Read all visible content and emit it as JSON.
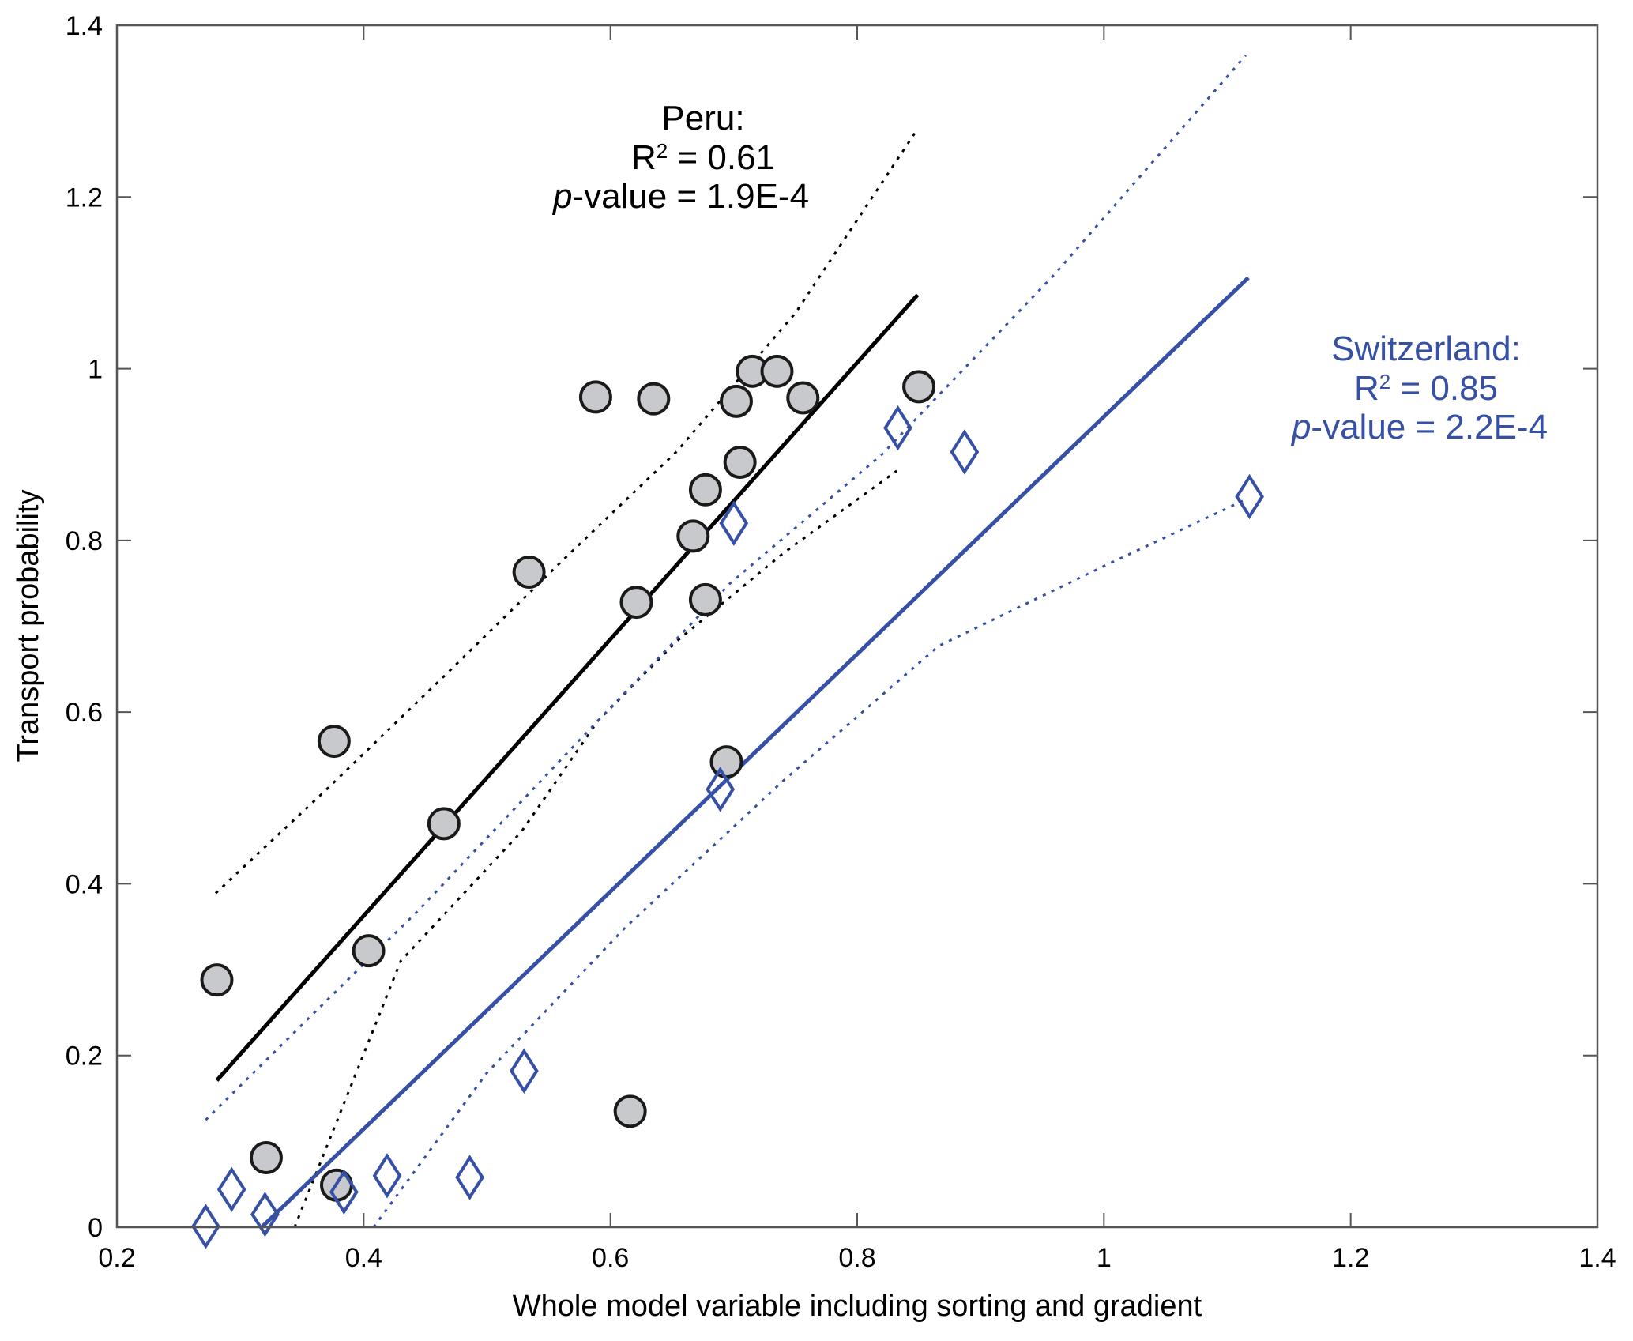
{
  "chart_data": {
    "type": "scatter",
    "title": "",
    "xlabel": "Whole model variable including sorting and gradient",
    "ylabel": "Transport probability",
    "xlim": [
      0.2,
      1.4
    ],
    "ylim": [
      0,
      1.4
    ],
    "xticks": [
      0.2,
      0.4,
      0.6,
      0.8,
      1,
      1.2,
      1.4
    ],
    "xtick_labels": [
      "0.2",
      "0.4",
      "0.6",
      "0.8",
      "1",
      "1.2",
      "1.4"
    ],
    "yticks": [
      0,
      0.2,
      0.4,
      0.6,
      0.8,
      1,
      1.2,
      1.4
    ],
    "ytick_labels": [
      "0",
      "0.2",
      "0.4",
      "0.6",
      "0.8",
      "1",
      "1.2",
      "1.4"
    ],
    "grid": false,
    "series": [
      {
        "name": "Peru",
        "marker": "circle",
        "color": "#000000",
        "fill": "#c8c9cc",
        "points": [
          [
            0.281,
            0.288
          ],
          [
            0.376,
            0.566
          ],
          [
            0.321,
            0.081
          ],
          [
            0.378,
            0.049
          ],
          [
            0.404,
            0.322
          ],
          [
            0.465,
            0.47
          ],
          [
            0.534,
            0.763
          ],
          [
            0.588,
            0.967
          ],
          [
            0.635,
            0.965
          ],
          [
            0.621,
            0.728
          ],
          [
            0.667,
            0.805
          ],
          [
            0.677,
            0.859
          ],
          [
            0.677,
            0.731
          ],
          [
            0.702,
            0.962
          ],
          [
            0.705,
            0.891
          ],
          [
            0.715,
            0.997
          ],
          [
            0.735,
            0.997
          ],
          [
            0.756,
            0.966
          ],
          [
            0.85,
            0.979
          ],
          [
            0.694,
            0.542
          ],
          [
            0.616,
            0.135
          ]
        ],
        "fit": [
          [
            0.281,
            0.171
          ],
          [
            0.849,
            1.086
          ]
        ],
        "ci_upper": [
          [
            0.28,
            0.389
          ],
          [
            0.37,
            0.51
          ],
          [
            0.466,
            0.643
          ],
          [
            0.56,
            0.775
          ],
          [
            0.654,
            0.904
          ],
          [
            0.75,
            1.065
          ],
          [
            0.847,
            1.275
          ]
        ],
        "ci_lower": [
          [
            0.344,
            0.0
          ],
          [
            0.43,
            0.31
          ],
          [
            0.528,
            0.461
          ],
          [
            0.59,
            0.59
          ],
          [
            0.654,
            0.683
          ],
          [
            0.74,
            0.785
          ],
          [
            0.832,
            0.881
          ]
        ]
      },
      {
        "name": "Switzerland",
        "marker": "diamond",
        "color": "#3650a5",
        "fill": "#ffffff",
        "points": [
          [
            0.272,
            0.001
          ],
          [
            0.293,
            0.044
          ],
          [
            0.32,
            0.015
          ],
          [
            0.384,
            0.041
          ],
          [
            0.419,
            0.06
          ],
          [
            0.486,
            0.058
          ],
          [
            0.53,
            0.182
          ],
          [
            0.7,
            0.82
          ],
          [
            0.689,
            0.51
          ],
          [
            0.833,
            0.931
          ],
          [
            0.887,
            0.903
          ],
          [
            1.118,
            0.851
          ]
        ],
        "fit": [
          [
            0.318,
            0.001
          ],
          [
            1.117,
            1.106
          ]
        ],
        "ci_upper": [
          [
            0.272,
            0.125
          ],
          [
            0.36,
            0.25
          ],
          [
            0.443,
            0.367
          ],
          [
            0.57,
            0.56
          ],
          [
            0.697,
            0.75
          ],
          [
            0.82,
            0.9
          ],
          [
            0.96,
            1.11
          ],
          [
            1.115,
            1.365
          ]
        ],
        "ci_lower": [
          [
            0.408,
            0.0
          ],
          [
            0.5,
            0.18
          ],
          [
            0.612,
            0.349
          ],
          [
            0.74,
            0.52
          ],
          [
            0.866,
            0.677
          ],
          [
            1.0,
            0.77
          ],
          [
            1.117,
            0.849
          ]
        ]
      }
    ],
    "annotations": [
      {
        "series": "Peru",
        "lines": [
          "Peru:",
          "R",
          "2",
          " = 0.61",
          "p",
          "-value = 1.9E-4"
        ],
        "color": "#000000"
      },
      {
        "series": "Switzerland",
        "lines": [
          "Switzerland:",
          "R",
          "2",
          " = 0.85",
          "p",
          "-value = 2.2E-4"
        ],
        "color": "#3650a5"
      }
    ]
  },
  "text": {
    "peru_title": "Peru:",
    "peru_r_prefix": "R",
    "peru_r_sup": "2",
    "peru_r_value": " = 0.61",
    "peru_p_italic": "p",
    "peru_p_value": "-value = 1.9E-4",
    "swiss_title": "Switzerland:",
    "swiss_r_prefix": "R",
    "swiss_r_sup": "2",
    "swiss_r_value": " = 0.85",
    "swiss_p_italic": "p",
    "swiss_p_value": "-value = 2.2E-4"
  }
}
